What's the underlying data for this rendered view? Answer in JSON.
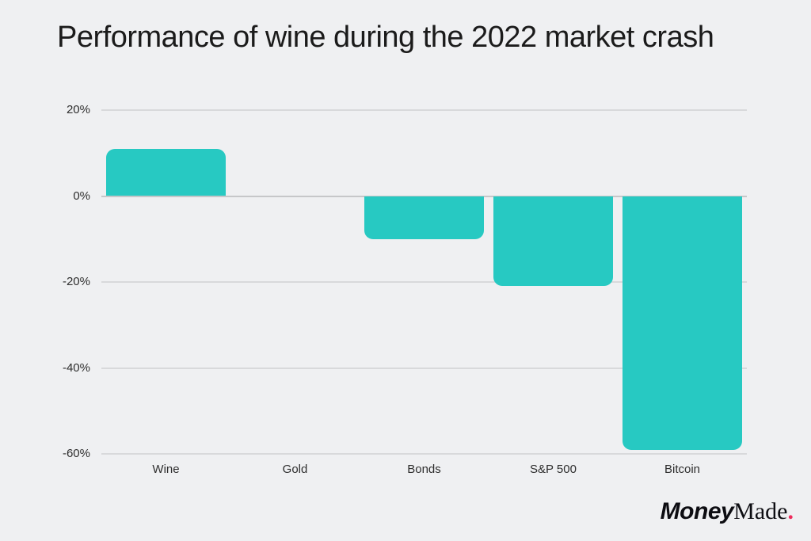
{
  "title": "Performance of wine during the 2022 market crash",
  "colors": {
    "background": "#eff0f2",
    "bar": "#27c9c2",
    "gridline": "#d8d9db",
    "zero_line": "#c6c7c9",
    "title_text": "#1b1b1b",
    "axis_text": "#2e2e2e",
    "logo_text": "#0d0d12",
    "logo_dot": "#ee2c5c"
  },
  "chart_data": {
    "type": "bar",
    "title": "Performance of wine during the 2022 market crash",
    "categories": [
      "Wine",
      "Gold",
      "Bonds",
      "S&P 500",
      "Bitcoin"
    ],
    "values": [
      11,
      0,
      -10,
      -21,
      -59
    ],
    "unit": "%",
    "xlabel": "",
    "ylabel": "",
    "ylim": [
      -60,
      20
    ],
    "yticks": [
      20,
      0,
      -20,
      -40,
      -60
    ],
    "ytick_labels": [
      "20%",
      "0%",
      "-20%",
      "-40%",
      "-60%"
    ],
    "grid": true,
    "legend": false,
    "bar_color": "#27c9c2"
  },
  "branding": {
    "logo_part_bold": "Money",
    "logo_part_serif": "Made",
    "logo_dot": "."
  }
}
